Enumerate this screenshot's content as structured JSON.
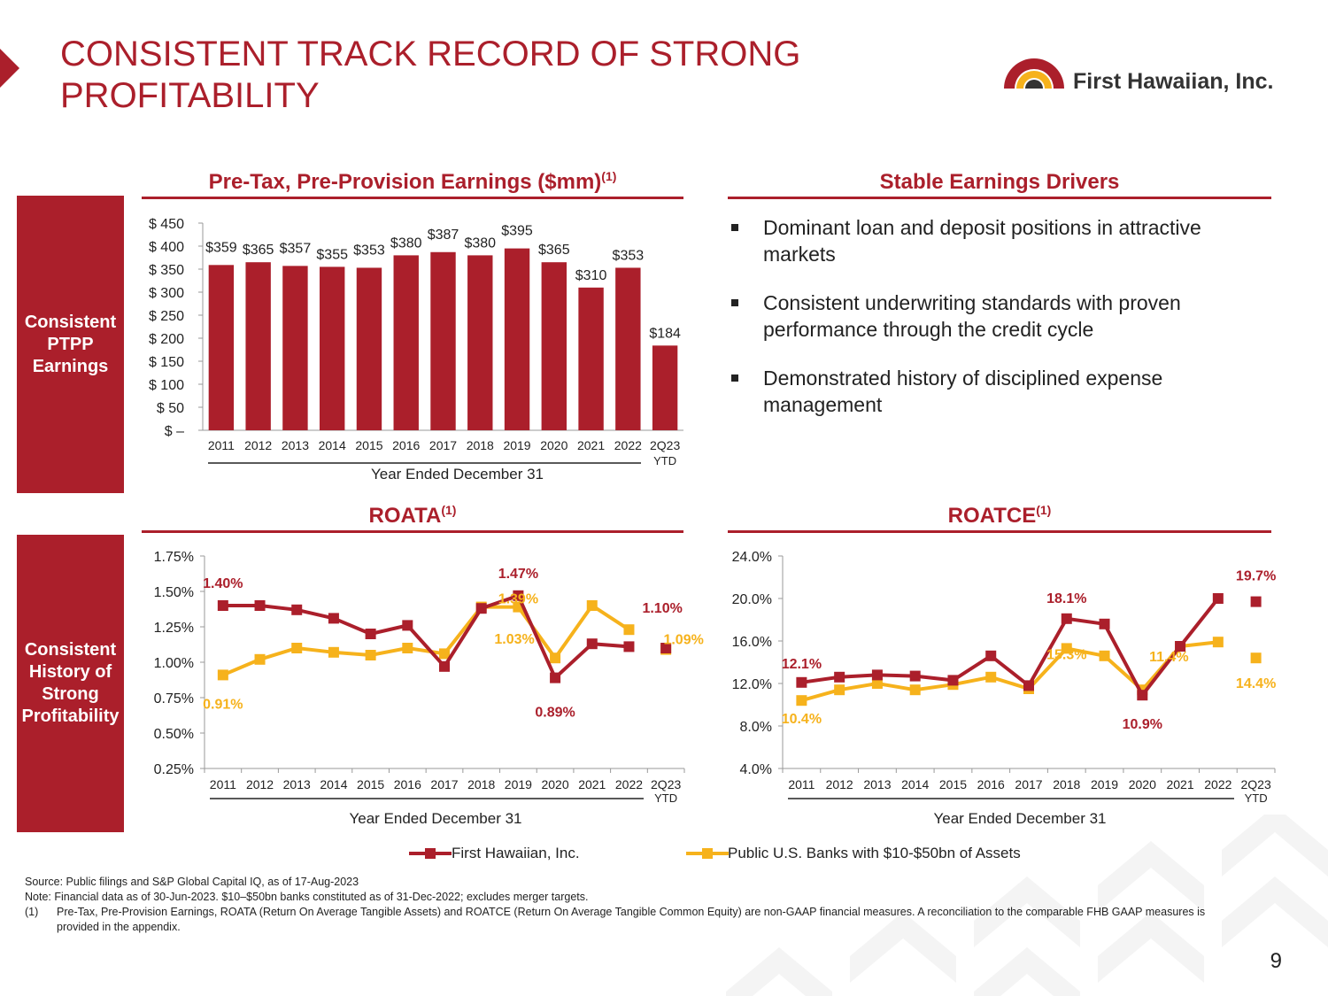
{
  "page": {
    "title_line1": "CONSISTENT TRACK RECORD OF STRONG",
    "title_line2": "PROFITABILITY",
    "page_number": "9",
    "brand_color": "#ab1f2b",
    "peer_color": "#f6b21c"
  },
  "logo": {
    "text": "First Hawaiian, Inc."
  },
  "sidebar": {
    "ptpp": [
      "Consistent",
      "PTPP",
      "Earnings"
    ],
    "history": [
      "Consistent",
      "History of",
      "Strong",
      "Profitability"
    ]
  },
  "drivers": {
    "title": "Stable Earnings Drivers",
    "items": [
      "Dominant loan and deposit positions in attractive markets",
      "Consistent underwriting standards with proven performance through the credit cycle",
      "Demonstrated history of disciplined expense management"
    ]
  },
  "legend": {
    "fhb": "First Hawaiian, Inc.",
    "peers": "Public U.S. Banks with $10-$50bn of Assets"
  },
  "notes": {
    "source": "Source: Public filings and S&P Global Capital IQ, as of 17-Aug-2023",
    "note": "Note: Financial data as of 30-Jun-2023. $10–$50bn banks constituted as of 31-Dec-2022; excludes merger targets.",
    "fn_num": "(1)",
    "fn_text": "Pre-Tax, Pre-Provision Earnings, ROATA (Return On Average Tangible Assets) and ROATCE (Return On Average Tangible Common Equity) are non-GAAP financial measures.  A reconciliation to the comparable FHB GAAP measures is provided in the appendix."
  },
  "chart_data": [
    {
      "id": "ptpp",
      "type": "bar",
      "title": "Pre-Tax, Pre-Provision Earnings ($mm)",
      "title_sup": "(1)",
      "xlabel": "Year Ended December 31",
      "categories": [
        "2011",
        "2012",
        "2013",
        "2014",
        "2015",
        "2016",
        "2017",
        "2018",
        "2019",
        "2020",
        "2021",
        "2022",
        "2Q23"
      ],
      "ytd_label": "YTD",
      "values": [
        359,
        365,
        357,
        355,
        353,
        380,
        387,
        380,
        395,
        365,
        310,
        353,
        184
      ],
      "value_labels": [
        "$359",
        "$365",
        "$357",
        "$355",
        "$353",
        "$380",
        "$387",
        "$380",
        "$395",
        "$365",
        "$310",
        "$353",
        "$184"
      ],
      "ylim": [
        0,
        450
      ],
      "yticks": [
        0,
        50,
        100,
        150,
        200,
        250,
        300,
        350,
        400,
        450
      ],
      "ytick_labels": [
        "$ –",
        "$ 50",
        "$ 100",
        "$ 150",
        "$ 200",
        "$ 250",
        "$ 300",
        "$ 350",
        "$ 400",
        "$ 450"
      ]
    },
    {
      "id": "roata",
      "type": "line",
      "title": "ROATA",
      "title_sup": "(1)",
      "xlabel": "Year Ended December 31",
      "categories": [
        "2011",
        "2012",
        "2013",
        "2014",
        "2015",
        "2016",
        "2017",
        "2018",
        "2019",
        "2020",
        "2021",
        "2022",
        "2Q23"
      ],
      "ytd_label": "YTD",
      "ylim": [
        0.25,
        1.75
      ],
      "yticks": [
        0.25,
        0.5,
        0.75,
        1.0,
        1.25,
        1.5,
        1.75
      ],
      "ytick_labels": [
        "0.25%",
        "0.50%",
        "0.75%",
        "1.00%",
        "1.25%",
        "1.50%",
        "1.75%"
      ],
      "series": [
        {
          "name": "First Hawaiian, Inc.",
          "values": [
            1.4,
            1.4,
            1.37,
            1.31,
            1.2,
            1.26,
            0.97,
            1.38,
            1.47,
            0.89,
            1.13,
            1.11,
            1.1
          ]
        },
        {
          "name": "Public U.S. Banks with $10-$50bn of Assets",
          "values": [
            0.91,
            1.02,
            1.1,
            1.07,
            1.05,
            1.1,
            1.06,
            1.39,
            1.39,
            1.03,
            1.4,
            1.23,
            1.09
          ]
        }
      ],
      "annotations": [
        {
          "series": 0,
          "index": 0,
          "text": "1.40%"
        },
        {
          "series": 0,
          "index": 8,
          "text": "1.47%"
        },
        {
          "series": 0,
          "index": 9,
          "text": "0.89%"
        },
        {
          "series": 0,
          "index": 12,
          "text": "1.10%"
        },
        {
          "series": 1,
          "index": 0,
          "text": "0.91%"
        },
        {
          "series": 1,
          "index": 8,
          "text": "1.39%"
        },
        {
          "series": 1,
          "index": 9,
          "text": "1.03%"
        },
        {
          "series": 1,
          "index": 12,
          "text": "1.09%"
        }
      ]
    },
    {
      "id": "roatce",
      "type": "line",
      "title": "ROATCE",
      "title_sup": "(1)",
      "xlabel": "Year Ended December 31",
      "categories": [
        "2011",
        "2012",
        "2013",
        "2014",
        "2015",
        "2016",
        "2017",
        "2018",
        "2019",
        "2020",
        "2021",
        "2022",
        "2Q23"
      ],
      "ytd_label": "YTD",
      "ylim": [
        4,
        24
      ],
      "yticks": [
        4,
        8,
        12,
        16,
        20,
        24
      ],
      "ytick_labels": [
        "4.0%",
        "8.0%",
        "12.0%",
        "16.0%",
        "20.0%",
        "24.0%"
      ],
      "series": [
        {
          "name": "First Hawaiian, Inc.",
          "values": [
            12.1,
            12.6,
            12.8,
            12.7,
            12.3,
            14.6,
            11.8,
            18.1,
            17.6,
            10.9,
            15.5,
            20.0,
            19.7
          ]
        },
        {
          "name": "Public U.S. Banks with $10-$50bn of Assets",
          "values": [
            10.4,
            11.4,
            12.0,
            11.4,
            11.9,
            12.6,
            11.5,
            15.3,
            14.6,
            11.4,
            15.5,
            15.9,
            14.4
          ]
        }
      ],
      "annotations": [
        {
          "series": 0,
          "index": 0,
          "text": "12.1%"
        },
        {
          "series": 0,
          "index": 7,
          "text": "18.1%"
        },
        {
          "series": 0,
          "index": 9,
          "text": "10.9%"
        },
        {
          "series": 0,
          "index": 12,
          "text": "19.7%"
        },
        {
          "series": 1,
          "index": 0,
          "text": "10.4%"
        },
        {
          "series": 1,
          "index": 7,
          "text": "15.3%"
        },
        {
          "series": 1,
          "index": 9,
          "text": "11.4%"
        },
        {
          "series": 1,
          "index": 12,
          "text": "14.4%"
        }
      ]
    }
  ]
}
